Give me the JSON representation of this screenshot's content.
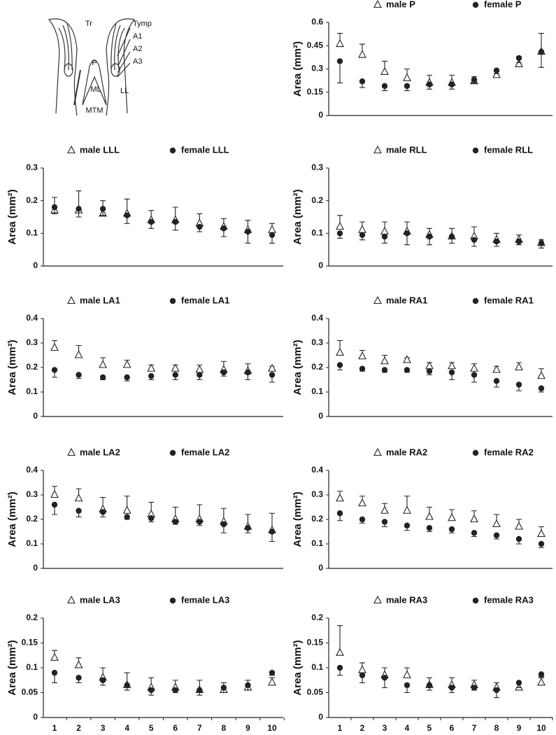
{
  "diagram": {
    "labels": [
      "Tr",
      "Tymp",
      "A1",
      "A2",
      "A3",
      "P",
      "ML",
      "LL",
      "MTM"
    ]
  },
  "chart_data": [
    {
      "type": "errorscatter",
      "ylabel": "Area (mm²)",
      "ylim": [
        0,
        0.6
      ],
      "yticks": [
        0,
        0.15,
        0.3,
        0.45,
        0.6
      ],
      "series": [
        {
          "name": "male P",
          "marker": "triangle-open",
          "color": "#222222",
          "error_direction": "up",
          "values": [
            0.46,
            0.39,
            0.28,
            0.24,
            0.21,
            0.21,
            0.22,
            0.26,
            0.33,
            0.41
          ],
          "errors": [
            0.07,
            0.07,
            0.07,
            0.06,
            0.05,
            0.05,
            0.03,
            0.03,
            0.05,
            0.12
          ]
        },
        {
          "name": "female P",
          "marker": "circle",
          "color": "#222222",
          "error_direction": "down",
          "values": [
            0.35,
            0.22,
            0.19,
            0.19,
            0.2,
            0.2,
            0.23,
            0.29,
            0.37,
            0.41
          ],
          "errors": [
            0.14,
            0.04,
            0.03,
            0.03,
            0.03,
            0.03,
            0.02,
            0.02,
            0.03,
            0.1
          ]
        }
      ]
    },
    {
      "type": "errorscatter",
      "ylabel": "Area (mm²)",
      "ylim": [
        0,
        0.3
      ],
      "yticks": [
        0,
        0.1,
        0.2,
        0.3
      ],
      "series": [
        {
          "name": "male LLL",
          "marker": "triangle-open",
          "color": "#222222",
          "error_direction": "up",
          "values": [
            0.17,
            0.17,
            0.16,
            0.16,
            0.14,
            0.14,
            0.13,
            0.12,
            0.11,
            0.11
          ],
          "errors": [
            0.04,
            0.06,
            0.04,
            0.045,
            0.03,
            0.04,
            0.03,
            0.025,
            0.03,
            0.02
          ]
        },
        {
          "name": "female LLL",
          "marker": "circle",
          "color": "#222222",
          "error_direction": "down",
          "values": [
            0.18,
            0.175,
            0.175,
            0.155,
            0.135,
            0.135,
            0.12,
            0.115,
            0.105,
            0.095
          ],
          "errors": [
            0.02,
            0.025,
            0.02,
            0.025,
            0.02,
            0.025,
            0.015,
            0.025,
            0.035,
            0.025
          ]
        }
      ]
    },
    {
      "type": "errorscatter",
      "ylabel": "Area (mm²)",
      "ylim": [
        0,
        0.3
      ],
      "yticks": [
        0,
        0.1,
        0.2,
        0.3
      ],
      "series": [
        {
          "name": "male RLL",
          "marker": "triangle-open",
          "color": "#222222",
          "error_direction": "up",
          "values": [
            0.12,
            0.11,
            0.105,
            0.105,
            0.095,
            0.09,
            0.09,
            0.08,
            0.08,
            0.07
          ],
          "errors": [
            0.035,
            0.025,
            0.03,
            0.03,
            0.02,
            0.025,
            0.03,
            0.02,
            0.015,
            0.01
          ]
        },
        {
          "name": "female RLL",
          "marker": "circle",
          "color": "#222222",
          "error_direction": "down",
          "values": [
            0.1,
            0.095,
            0.09,
            0.1,
            0.09,
            0.09,
            0.08,
            0.075,
            0.075,
            0.07
          ],
          "errors": [
            0.015,
            0.015,
            0.02,
            0.035,
            0.025,
            0.02,
            0.02,
            0.015,
            0.01,
            0.015
          ]
        }
      ]
    },
    {
      "type": "errorscatter",
      "ylabel": "Area (mm²)",
      "ylim": [
        0,
        0.4
      ],
      "yticks": [
        0,
        0.1,
        0.2,
        0.3,
        0.4
      ],
      "series": [
        {
          "name": "male LA1",
          "marker": "triangle-open",
          "color": "#222222",
          "error_direction": "up",
          "values": [
            0.28,
            0.25,
            0.21,
            0.21,
            0.195,
            0.195,
            0.19,
            0.19,
            0.185,
            0.195
          ],
          "errors": [
            0.03,
            0.04,
            0.03,
            0.02,
            0.015,
            0.015,
            0.02,
            0.035,
            0.03,
            0.01
          ]
        },
        {
          "name": "female LA1",
          "marker": "circle",
          "color": "#222222",
          "error_direction": "down",
          "values": [
            0.19,
            0.17,
            0.16,
            0.16,
            0.165,
            0.17,
            0.17,
            0.18,
            0.18,
            0.17
          ],
          "errors": [
            0.03,
            0.015,
            0.01,
            0.015,
            0.015,
            0.02,
            0.02,
            0.015,
            0.03,
            0.03
          ]
        }
      ]
    },
    {
      "type": "errorscatter",
      "ylabel": "Area (mm²)",
      "ylim": [
        0,
        0.4
      ],
      "yticks": [
        0,
        0.1,
        0.2,
        0.3,
        0.4
      ],
      "series": [
        {
          "name": "male RA1",
          "marker": "triangle-open",
          "color": "#222222",
          "error_direction": "up",
          "values": [
            0.26,
            0.245,
            0.225,
            0.23,
            0.205,
            0.205,
            0.195,
            0.19,
            0.2,
            0.165
          ],
          "errors": [
            0.05,
            0.025,
            0.025,
            0.01,
            0.015,
            0.015,
            0.02,
            0.015,
            0.02,
            0.03
          ]
        },
        {
          "name": "female RA1",
          "marker": "circle",
          "color": "#222222",
          "error_direction": "down",
          "values": [
            0.21,
            0.195,
            0.19,
            0.19,
            0.185,
            0.18,
            0.17,
            0.145,
            0.13,
            0.115
          ],
          "errors": [
            0.02,
            0.01,
            0.01,
            0.01,
            0.015,
            0.03,
            0.03,
            0.025,
            0.025,
            0.015
          ]
        }
      ]
    },
    {
      "type": "errorscatter",
      "ylabel": "Area (mm²)",
      "ylim": [
        0,
        0.4
      ],
      "yticks": [
        0,
        0.1,
        0.2,
        0.3,
        0.4
      ],
      "series": [
        {
          "name": "male LA2",
          "marker": "triangle-open",
          "color": "#222222",
          "error_direction": "up",
          "values": [
            0.3,
            0.285,
            0.24,
            0.235,
            0.22,
            0.2,
            0.2,
            0.19,
            0.17,
            0.155
          ],
          "errors": [
            0.035,
            0.04,
            0.05,
            0.06,
            0.05,
            0.05,
            0.06,
            0.055,
            0.05,
            0.07
          ]
        },
        {
          "name": "female LA2",
          "marker": "circle",
          "color": "#222222",
          "error_direction": "down",
          "values": [
            0.26,
            0.235,
            0.23,
            0.21,
            0.205,
            0.19,
            0.19,
            0.18,
            0.165,
            0.15
          ],
          "errors": [
            0.04,
            0.025,
            0.02,
            0.01,
            0.015,
            0.01,
            0.015,
            0.035,
            0.02,
            0.04
          ]
        }
      ]
    },
    {
      "type": "errorscatter",
      "ylabel": "Area (mm²)",
      "ylim": [
        0,
        0.4
      ],
      "yticks": [
        0,
        0.1,
        0.2,
        0.3,
        0.4
      ],
      "series": [
        {
          "name": "male RA2",
          "marker": "triangle-open",
          "color": "#222222",
          "error_direction": "up",
          "values": [
            0.285,
            0.265,
            0.235,
            0.235,
            0.21,
            0.205,
            0.2,
            0.18,
            0.17,
            0.14
          ],
          "errors": [
            0.03,
            0.03,
            0.03,
            0.06,
            0.04,
            0.035,
            0.035,
            0.04,
            0.03,
            0.03
          ]
        },
        {
          "name": "female RA2",
          "marker": "circle",
          "color": "#222222",
          "error_direction": "down",
          "values": [
            0.225,
            0.2,
            0.19,
            0.175,
            0.165,
            0.16,
            0.145,
            0.135,
            0.12,
            0.1
          ],
          "errors": [
            0.03,
            0.015,
            0.02,
            0.02,
            0.015,
            0.015,
            0.015,
            0.015,
            0.02,
            0.015
          ]
        }
      ]
    },
    {
      "type": "errorscatter",
      "ylabel": "Area (mm²)",
      "ylim": [
        0,
        0.2
      ],
      "yticks": [
        0,
        0.05,
        0.1,
        0.15,
        0.2
      ],
      "categories": [
        "1",
        "2",
        "3",
        "4",
        "5",
        "6",
        "7",
        "8",
        "9",
        "10"
      ],
      "series": [
        {
          "name": "male LA3",
          "marker": "triangle-open",
          "color": "#222222",
          "error_direction": "up",
          "values": [
            0.12,
            0.105,
            0.08,
            0.065,
            0.06,
            0.06,
            0.055,
            0.055,
            0.06,
            0.07
          ],
          "errors": [
            0.015,
            0.015,
            0.02,
            0.025,
            0.02,
            0.015,
            0.02,
            0.015,
            0.015,
            0.01
          ]
        },
        {
          "name": "female LA3",
          "marker": "circle",
          "color": "#222222",
          "error_direction": "down",
          "values": [
            0.09,
            0.08,
            0.075,
            0.065,
            0.055,
            0.055,
            0.055,
            0.06,
            0.065,
            0.09
          ],
          "errors": [
            0.02,
            0.01,
            0.01,
            0.01,
            0.01,
            0.005,
            0.01,
            0.01,
            0.01,
            0.005
          ]
        }
      ]
    },
    {
      "type": "errorscatter",
      "ylabel": "Area (mm²)",
      "ylim": [
        0,
        0.2
      ],
      "yticks": [
        0,
        0.05,
        0.1,
        0.15,
        0.2
      ],
      "categories": [
        "1",
        "2",
        "3",
        "4",
        "5",
        "6",
        "7",
        "8",
        "9",
        "10"
      ],
      "series": [
        {
          "name": "male RA3",
          "marker": "triangle-open",
          "color": "#222222",
          "error_direction": "up",
          "values": [
            0.13,
            0.095,
            0.085,
            0.085,
            0.065,
            0.065,
            0.065,
            0.06,
            0.06,
            0.07
          ],
          "errors": [
            0.055,
            0.015,
            0.015,
            0.015,
            0.015,
            0.015,
            0.01,
            0.01,
            0.01,
            0.01
          ]
        },
        {
          "name": "female RA3",
          "marker": "circle",
          "color": "#222222",
          "error_direction": "down",
          "values": [
            0.1,
            0.085,
            0.08,
            0.065,
            0.065,
            0.06,
            0.06,
            0.055,
            0.07,
            0.087
          ],
          "errors": [
            0.015,
            0.015,
            0.02,
            0.015,
            0.01,
            0.01,
            0.005,
            0.015,
            0.01,
            0.005
          ]
        }
      ]
    }
  ]
}
